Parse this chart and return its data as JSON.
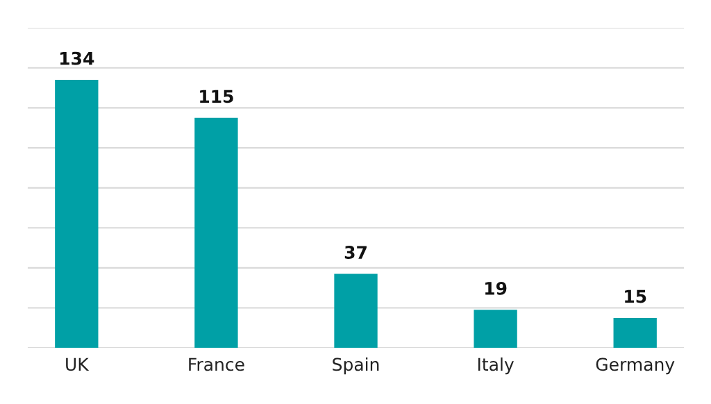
{
  "chart_data": {
    "type": "bar",
    "categories": [
      "UK",
      "France",
      "Spain",
      "Italy",
      "Germany"
    ],
    "values": [
      134,
      115,
      37,
      19,
      15
    ],
    "color": "#00a0a6",
    "data_labels": true,
    "grid": "y",
    "tick_labels": "x",
    "ylim": [
      0,
      160
    ],
    "yticks": [
      {
        "value": 0,
        "label": null
      },
      {
        "value": 20,
        "label": null
      },
      {
        "value": 40,
        "label": null
      },
      {
        "value": 60,
        "label": null
      },
      {
        "value": 80,
        "label": null
      },
      {
        "value": 100,
        "label": null
      },
      {
        "value": 120,
        "label": null
      },
      {
        "value": 140,
        "label": null
      },
      {
        "value": 160,
        "label": null
      }
    ]
  }
}
